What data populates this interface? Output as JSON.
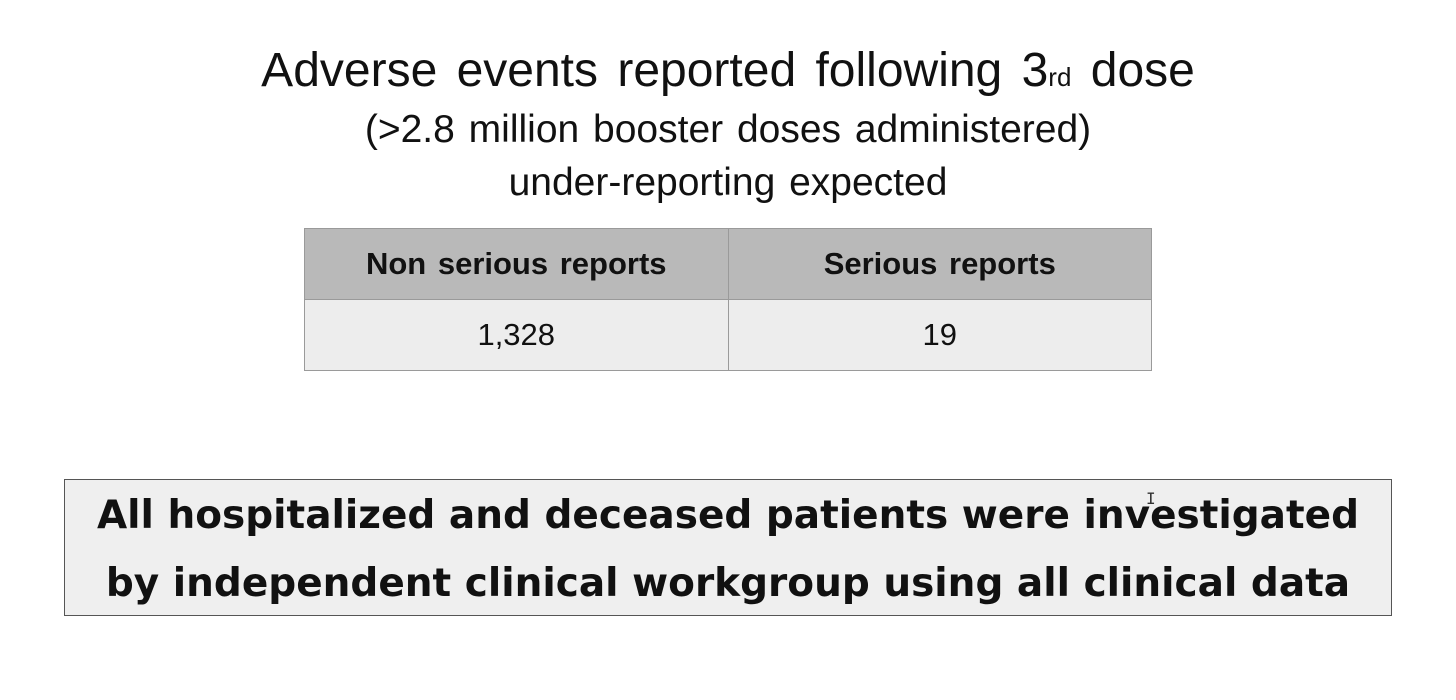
{
  "title": {
    "text_before": "Adverse events reported following 3",
    "superscript": "rd",
    "text_after": " dose"
  },
  "subtitle": "(>2.8 million booster doses administered)",
  "subtitle2": "under-reporting expected",
  "table": {
    "headers": [
      "Non serious reports",
      "Serious reports"
    ],
    "rows": [
      [
        "1,328",
        "19"
      ]
    ]
  },
  "note": {
    "line1": "All hospitalized and deceased patients were investigated",
    "line2": "by independent clinical workgroup using all clinical data"
  },
  "cursor": {
    "icon": "text-cursor-icon",
    "glyph": "I"
  },
  "colors": {
    "header_bg": "#b9b9b9",
    "cell_bg": "#ededed",
    "note_bg": "#efefef"
  }
}
